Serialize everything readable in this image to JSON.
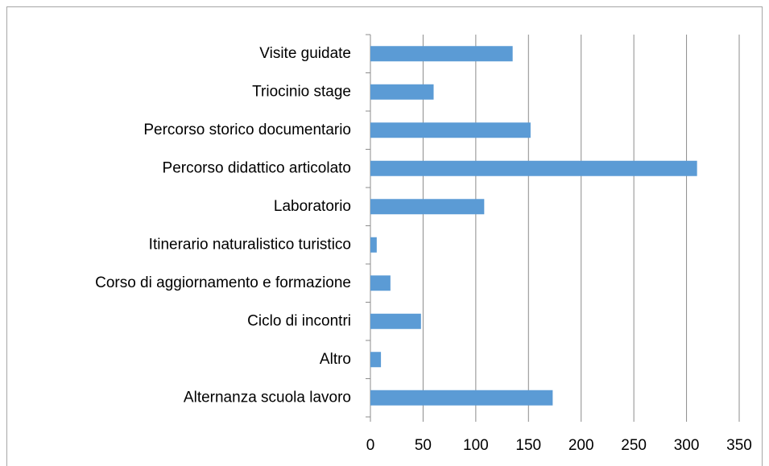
{
  "chart_data": {
    "type": "barh",
    "categories": [
      "Visite guidate",
      "Triocinio stage",
      "Percorso storico documentario",
      "Percorso didattico articolato",
      "Laboratorio",
      "Itinerario naturalistico turistico",
      "Corso di aggiornamento e formazione",
      "Ciclo di incontri",
      "Altro",
      "Alternanza scuola lavoro"
    ],
    "values": [
      135,
      60,
      152,
      310,
      108,
      6,
      19,
      48,
      10,
      173
    ],
    "color": "#5b9bd5",
    "xlim": [
      0,
      350
    ],
    "xticks": [
      0,
      50,
      100,
      150,
      200,
      250,
      300,
      350
    ],
    "grid": true
  }
}
